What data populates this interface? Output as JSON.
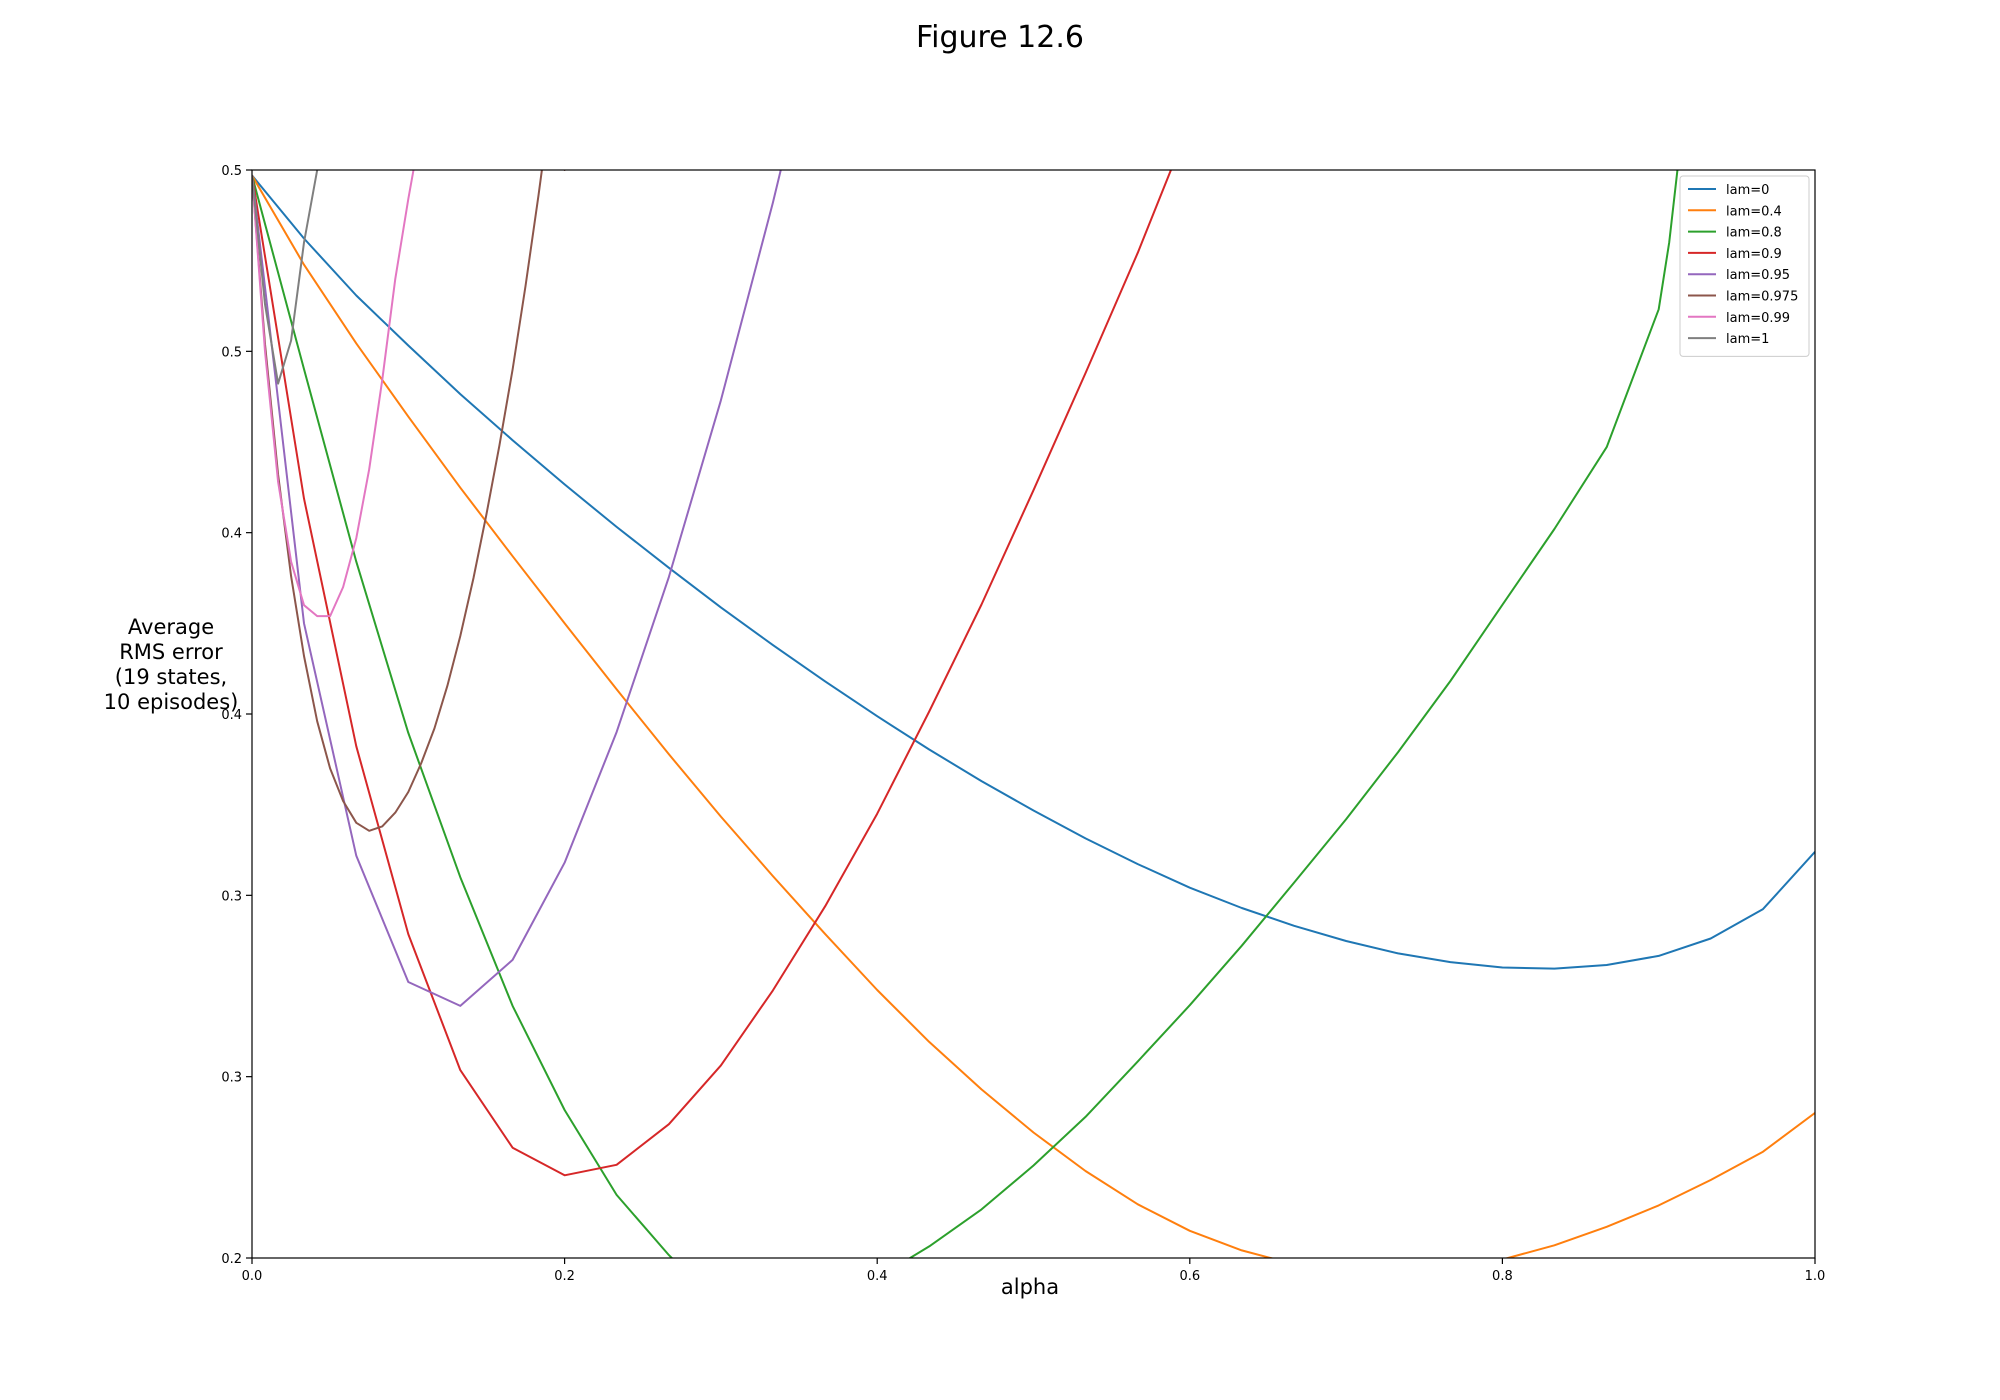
{
  "figure": {
    "title": "Figure 12.6"
  },
  "chart_data": {
    "type": "line",
    "xlabel": "alpha",
    "ylabel_lines": [
      "Average",
      "RMS error",
      "(19 states,",
      "10 episodes)"
    ],
    "xlim": [
      0,
      1
    ],
    "ylim": [
      0.2,
      0.5
    ],
    "xticks": [
      0.0,
      0.2,
      0.4,
      0.6,
      0.8,
      1.0
    ],
    "xtick_labels": [
      "0.0",
      "0.2",
      "0.4",
      "0.6",
      "0.8",
      "1.0"
    ],
    "yticks": [
      0.2,
      0.25,
      0.3,
      0.35,
      0.4,
      0.45,
      0.5
    ],
    "ytick_labels": [
      "0.2",
      "0.3",
      "0.3",
      "0.4",
      "0.4",
      "0.5",
      "0.5"
    ],
    "grid": false,
    "legend_position": "top-right",
    "series": [
      {
        "name": "lam=0",
        "color": "#1f77b4",
        "x": [
          0,
          0.0333,
          0.0667,
          0.1,
          0.1333,
          0.1667,
          0.2,
          0.2333,
          0.2667,
          0.3,
          0.3333,
          0.3667,
          0.4,
          0.4333,
          0.4667,
          0.5,
          0.5333,
          0.5667,
          0.6,
          0.6333,
          0.6667,
          0.7,
          0.7333,
          0.7667,
          0.8,
          0.8333,
          0.8667,
          0.9,
          0.9333,
          0.9667,
          1.0
        ],
        "y": [
          0.4985,
          0.4811,
          0.4654,
          0.4516,
          0.4382,
          0.4255,
          0.4133,
          0.4016,
          0.3903,
          0.3794,
          0.369,
          0.359,
          0.3494,
          0.3402,
          0.3315,
          0.3234,
          0.3157,
          0.3086,
          0.3021,
          0.2965,
          0.2916,
          0.2874,
          0.284,
          0.2816,
          0.2801,
          0.2798,
          0.2808,
          0.2833,
          0.2881,
          0.2962,
          0.312
        ]
      },
      {
        "name": "lam=0.4",
        "color": "#ff7f0e",
        "x": [
          0,
          0.0333,
          0.0667,
          0.1,
          0.1333,
          0.1667,
          0.2,
          0.2333,
          0.2667,
          0.3,
          0.3333,
          0.3667,
          0.4,
          0.4333,
          0.4667,
          0.5,
          0.5333,
          0.5667,
          0.6,
          0.6333,
          0.6667,
          0.7,
          0.7333,
          0.7667,
          0.8,
          0.8333,
          0.8667,
          0.9,
          0.9333,
          0.9667,
          1.0
        ],
        "y": [
          0.4985,
          0.4739,
          0.4522,
          0.432,
          0.4124,
          0.3935,
          0.375,
          0.3568,
          0.3389,
          0.3217,
          0.3053,
          0.2893,
          0.2739,
          0.2596,
          0.2465,
          0.2346,
          0.224,
          0.2148,
          0.2075,
          0.2021,
          0.1983,
          0.1962,
          0.1957,
          0.1969,
          0.1996,
          0.2035,
          0.2086,
          0.2145,
          0.2215,
          0.2293,
          0.24
        ]
      },
      {
        "name": "lam=0.8",
        "color": "#2ca02c",
        "x": [
          0,
          0.0333,
          0.0667,
          0.1,
          0.1333,
          0.1667,
          0.2,
          0.2333,
          0.2667,
          0.2733,
          0.4133,
          0.4333,
          0.4667,
          0.5,
          0.5333,
          0.5667,
          0.6,
          0.6333,
          0.6667,
          0.7,
          0.7333,
          0.7667,
          0.8,
          0.8333,
          0.8667,
          0.9,
          0.9067,
          0.9133
        ],
        "y": [
          0.4985,
          0.4451,
          0.392,
          0.3448,
          0.305,
          0.2695,
          0.2408,
          0.2174,
          0.2008,
          0.198,
          0.198,
          0.2032,
          0.2134,
          0.2255,
          0.2389,
          0.2542,
          0.2697,
          0.2861,
          0.3035,
          0.321,
          0.3395,
          0.3591,
          0.3801,
          0.401,
          0.4236,
          0.4616,
          0.48,
          0.505
        ]
      },
      {
        "name": "lam=0.9",
        "color": "#d62728",
        "x": [
          0,
          0.0333,
          0.0667,
          0.1,
          0.1333,
          0.1667,
          0.2,
          0.2333,
          0.2667,
          0.3,
          0.3333,
          0.3667,
          0.4,
          0.4333,
          0.4667,
          0.5,
          0.5333,
          0.5667,
          0.6
        ],
        "y": [
          0.4985,
          0.4094,
          0.3411,
          0.2893,
          0.2518,
          0.2304,
          0.2228,
          0.2257,
          0.2369,
          0.2531,
          0.2738,
          0.297,
          0.3225,
          0.3507,
          0.3802,
          0.4117,
          0.444,
          0.4772,
          0.513
        ]
      },
      {
        "name": "lam=0.95",
        "color": "#9467bd",
        "x": [
          0,
          0.0333,
          0.0667,
          0.1,
          0.1333,
          0.1667,
          0.2,
          0.2333,
          0.2667,
          0.3,
          0.3333,
          0.3467
        ],
        "y": [
          0.4985,
          0.375,
          0.3109,
          0.2761,
          0.2695,
          0.2822,
          0.309,
          0.345,
          0.3878,
          0.4365,
          0.491,
          0.515
        ]
      },
      {
        "name": "lam=0.975",
        "color": "#8c564b",
        "x": [
          0,
          0.0083,
          0.0167,
          0.025,
          0.0333,
          0.0417,
          0.05,
          0.0583,
          0.0667,
          0.075,
          0.0833,
          0.0917,
          0.1,
          0.1083,
          0.1167,
          0.125,
          0.1333,
          0.1417,
          0.15,
          0.1583,
          0.1667,
          0.175,
          0.1833,
          0.1917,
          0.2,
          0.2033
        ],
        "y": [
          0.4985,
          0.452,
          0.416,
          0.388,
          0.366,
          0.348,
          0.335,
          0.326,
          0.32,
          0.3178,
          0.319,
          0.3228,
          0.3285,
          0.3365,
          0.346,
          0.3578,
          0.3715,
          0.3875,
          0.405,
          0.424,
          0.445,
          0.468,
          0.493,
          0.52,
          0.5,
          0.515
        ]
      },
      {
        "name": "lam=0.99",
        "color": "#e377c2",
        "x": [
          0,
          0.0083,
          0.0167,
          0.025,
          0.0333,
          0.0417,
          0.05,
          0.0583,
          0.0667,
          0.075,
          0.0833,
          0.0917,
          0.1,
          0.1033,
          0.1083
        ],
        "y": [
          0.4985,
          0.45,
          0.414,
          0.392,
          0.38,
          0.377,
          0.377,
          0.385,
          0.3985,
          0.4175,
          0.442,
          0.47,
          0.492,
          0.5,
          0.515
        ]
      },
      {
        "name": "lam=1",
        "color": "#7f7f7f",
        "x": [
          0,
          0.0083,
          0.0167,
          0.025,
          0.0333,
          0.0417,
          0.0433
        ],
        "y": [
          0.4985,
          0.463,
          0.4411,
          0.453,
          0.48,
          0.5,
          0.515
        ]
      }
    ]
  }
}
